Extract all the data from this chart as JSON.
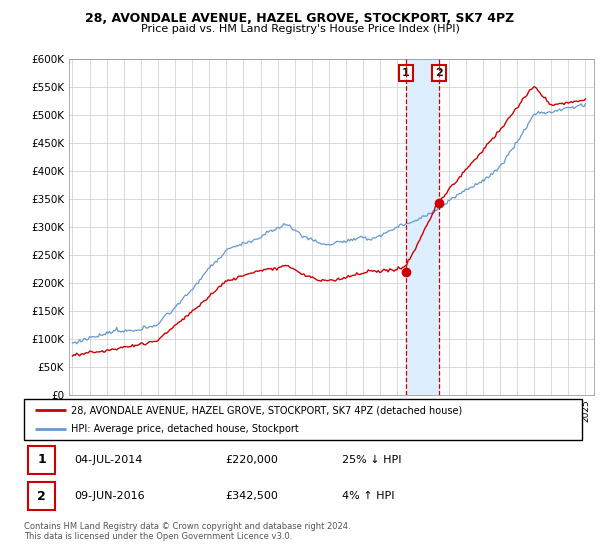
{
  "title1": "28, AVONDALE AVENUE, HAZEL GROVE, STOCKPORT, SK7 4PZ",
  "title2": "Price paid vs. HM Land Registry's House Price Index (HPI)",
  "legend_line1": "28, AVONDALE AVENUE, HAZEL GROVE, STOCKPORT, SK7 4PZ (detached house)",
  "legend_line2": "HPI: Average price, detached house, Stockport",
  "annotation1_label": "1",
  "annotation1_date": "04-JUL-2014",
  "annotation1_price": "£220,000",
  "annotation1_hpi": "25% ↓ HPI",
  "annotation2_label": "2",
  "annotation2_date": "09-JUN-2016",
  "annotation2_price": "£342,500",
  "annotation2_hpi": "4% ↑ HPI",
  "footer": "Contains HM Land Registry data © Crown copyright and database right 2024.\nThis data is licensed under the Open Government Licence v3.0.",
  "red_color": "#cc0000",
  "blue_color": "#6699cc",
  "shade_color": "#ddeeff",
  "ylim": [
    0,
    600000
  ],
  "yticks": [
    0,
    50000,
    100000,
    150000,
    200000,
    250000,
    300000,
    350000,
    400000,
    450000,
    500000,
    550000,
    600000
  ],
  "sale1_year": 2014.5,
  "sale1_price": 220000,
  "sale2_year": 2016.44,
  "sale2_price": 342500
}
